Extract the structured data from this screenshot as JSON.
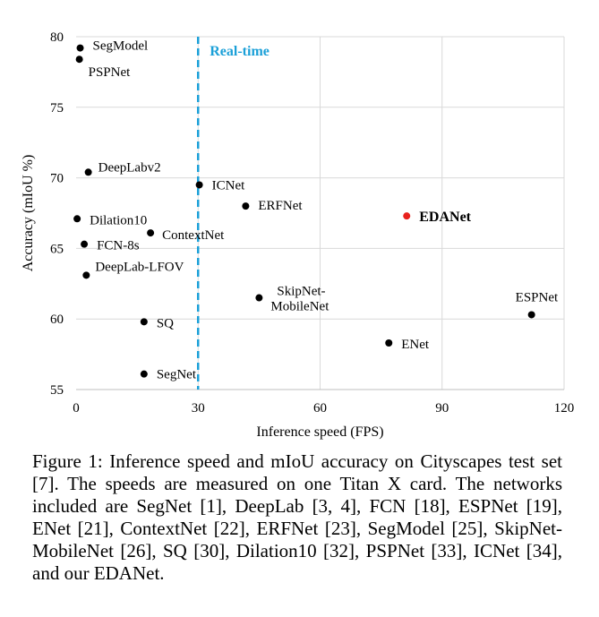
{
  "chart_data": {
    "type": "scatter",
    "title": "",
    "xlabel": "Inference speed (FPS)",
    "ylabel": "Accuracy (mIoU %)",
    "xlim": [
      0,
      120
    ],
    "ylim": [
      55,
      80
    ],
    "xticks": [
      0,
      30,
      60,
      90,
      120
    ],
    "yticks": [
      55,
      60,
      65,
      70,
      75,
      80
    ],
    "grid": true,
    "colors": {
      "point": "#000000",
      "highlight": "#e8211d",
      "realtime_line": "#1ba0d8",
      "grid": "#d9d9d9"
    },
    "realtime": {
      "x": 30,
      "label": "Real-time"
    },
    "points": [
      {
        "name": "SegModel",
        "x": 1.0,
        "y": 79.2
      },
      {
        "name": "PSPNet",
        "x": 0.8,
        "y": 78.4
      },
      {
        "name": "DeepLabv2",
        "x": 3.0,
        "y": 70.4
      },
      {
        "name": "ICNet",
        "x": 30.3,
        "y": 69.5
      },
      {
        "name": "ERFNet",
        "x": 41.7,
        "y": 68.0
      },
      {
        "name": "EDANet",
        "x": 81.3,
        "y": 67.3,
        "highlight": true
      },
      {
        "name": "Dilation10",
        "x": 0.25,
        "y": 67.1
      },
      {
        "name": "ContextNet",
        "x": 18.3,
        "y": 66.1
      },
      {
        "name": "FCN-8s",
        "x": 2.0,
        "y": 65.3
      },
      {
        "name": "DeepLab-LFOV",
        "x": 2.5,
        "y": 63.1
      },
      {
        "name": "SkipNet-MobileNet",
        "x": 45.0,
        "y": 61.5
      },
      {
        "name": "ESPNet",
        "x": 112.0,
        "y": 60.3
      },
      {
        "name": "SQ",
        "x": 16.7,
        "y": 59.8
      },
      {
        "name": "ENet",
        "x": 76.9,
        "y": 58.3
      },
      {
        "name": "SegNet",
        "x": 16.7,
        "y": 56.1
      }
    ]
  },
  "caption": "Figure 1: Inference speed and mIoU accuracy on Cityscapes test set [7]. The speeds are measured on one Titan X card. The networks included are SegNet [1], DeepLab [3, 4], FCN [18], ESPNet [19], ENet [21], ContextNet [22], ERFNet [23], SegModel [25], SkipNet-MobileNet [26], SQ [30], Dilation10 [32], PSPNet [33], ICNet [34], and our EDANet."
}
